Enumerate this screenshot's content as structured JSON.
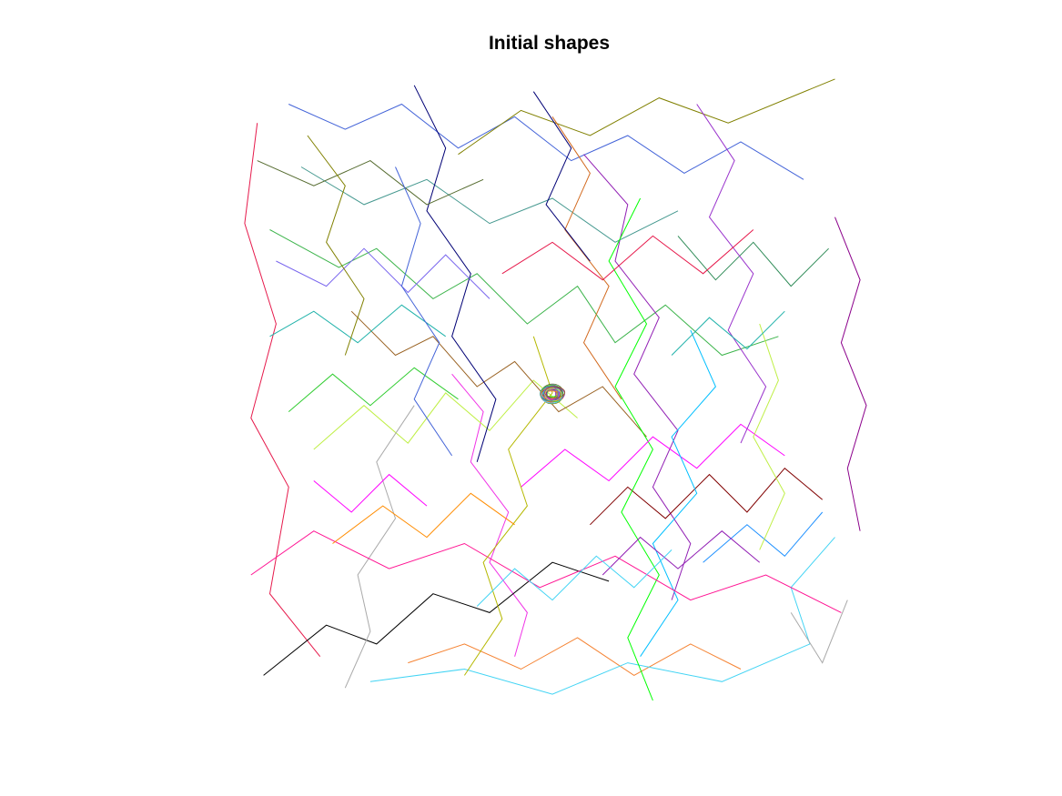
{
  "chart_data": {
    "type": "line",
    "title": "Initial shapes",
    "xlabel": "",
    "ylabel": "",
    "axes_visible": false,
    "grid": false,
    "legend": "none",
    "line_colors": [
      "#e6194b",
      "#3cb44b",
      "#4363d8",
      "#f58231",
      "#911eb4",
      "#42d4f4",
      "#f032e6",
      "#bfef45",
      "#469990",
      "#9a6324",
      "#800000",
      "#808000",
      "#000075",
      "#000000",
      "#a9a9a9",
      "#00ff00",
      "#ff00ff",
      "#00bfff",
      "#ff1493",
      "#7b68ee",
      "#b5b800",
      "#20b2aa",
      "#8b008b",
      "#556b2f",
      "#d2691e",
      "#2e8b57",
      "#9932cc",
      "#ff8c00",
      "#1e90ff",
      "#32cd32"
    ],
    "series": [
      {
        "color": "#e6194b",
        "points": [
          [
            0.13,
            0.07
          ],
          [
            0.05,
            0.17
          ],
          [
            0.08,
            0.34
          ],
          [
            0.02,
            0.45
          ],
          [
            0.06,
            0.6
          ],
          [
            0.01,
            0.76
          ],
          [
            0.03,
            0.92
          ]
        ]
      },
      {
        "color": "#3cb44b",
        "points": [
          [
            0.05,
            0.75
          ],
          [
            0.16,
            0.69
          ],
          [
            0.22,
            0.72
          ],
          [
            0.31,
            0.64
          ],
          [
            0.38,
            0.68
          ],
          [
            0.46,
            0.6
          ],
          [
            0.54,
            0.66
          ],
          [
            0.6,
            0.57
          ],
          [
            0.68,
            0.63
          ],
          [
            0.77,
            0.55
          ],
          [
            0.86,
            0.58
          ]
        ]
      },
      {
        "color": "#4363d8",
        "points": [
          [
            0.08,
            0.95
          ],
          [
            0.17,
            0.91
          ],
          [
            0.26,
            0.95
          ],
          [
            0.35,
            0.88
          ],
          [
            0.44,
            0.93
          ],
          [
            0.53,
            0.86
          ],
          [
            0.62,
            0.9
          ],
          [
            0.71,
            0.84
          ],
          [
            0.8,
            0.89
          ],
          [
            0.9,
            0.83
          ]
        ]
      },
      {
        "color": "#f58231",
        "points": [
          [
            0.27,
            0.06
          ],
          [
            0.36,
            0.09
          ],
          [
            0.45,
            0.05
          ],
          [
            0.54,
            0.1
          ],
          [
            0.63,
            0.04
          ],
          [
            0.72,
            0.09
          ],
          [
            0.8,
            0.05
          ]
        ]
      },
      {
        "color": "#911eb4",
        "points": [
          [
            0.55,
            0.87
          ],
          [
            0.62,
            0.79
          ],
          [
            0.6,
            0.7
          ],
          [
            0.67,
            0.61
          ],
          [
            0.63,
            0.52
          ],
          [
            0.7,
            0.43
          ],
          [
            0.66,
            0.34
          ],
          [
            0.72,
            0.25
          ],
          [
            0.69,
            0.16
          ]
        ]
      },
      {
        "color": "#42d4f4",
        "points": [
          [
            0.21,
            0.03
          ],
          [
            0.36,
            0.05
          ],
          [
            0.5,
            0.01
          ],
          [
            0.62,
            0.06
          ],
          [
            0.77,
            0.03
          ],
          [
            0.91,
            0.09
          ],
          [
            0.88,
            0.18
          ],
          [
            0.95,
            0.26
          ]
        ]
      },
      {
        "color": "#f032e6",
        "points": [
          [
            0.34,
            0.52
          ],
          [
            0.39,
            0.46
          ],
          [
            0.37,
            0.38
          ],
          [
            0.43,
            0.3
          ],
          [
            0.4,
            0.22
          ],
          [
            0.46,
            0.14
          ],
          [
            0.44,
            0.07
          ]
        ]
      },
      {
        "color": "#bfef45",
        "points": [
          [
            0.12,
            0.4
          ],
          [
            0.2,
            0.47
          ],
          [
            0.27,
            0.41
          ],
          [
            0.33,
            0.49
          ],
          [
            0.4,
            0.43
          ],
          [
            0.47,
            0.51
          ],
          [
            0.54,
            0.45
          ]
        ]
      },
      {
        "color": "#469990",
        "points": [
          [
            0.1,
            0.85
          ],
          [
            0.2,
            0.79
          ],
          [
            0.3,
            0.83
          ],
          [
            0.4,
            0.76
          ],
          [
            0.5,
            0.8
          ],
          [
            0.6,
            0.73
          ],
          [
            0.7,
            0.78
          ]
        ]
      },
      {
        "color": "#9a6324",
        "points": [
          [
            0.18,
            0.62
          ],
          [
            0.25,
            0.55
          ],
          [
            0.31,
            0.58
          ],
          [
            0.38,
            0.5
          ],
          [
            0.44,
            0.54
          ],
          [
            0.51,
            0.46
          ],
          [
            0.58,
            0.5
          ],
          [
            0.65,
            0.42
          ]
        ]
      },
      {
        "color": "#800000",
        "points": [
          [
            0.56,
            0.28
          ],
          [
            0.62,
            0.34
          ],
          [
            0.68,
            0.29
          ],
          [
            0.75,
            0.36
          ],
          [
            0.81,
            0.3
          ],
          [
            0.87,
            0.37
          ],
          [
            0.93,
            0.32
          ]
        ]
      },
      {
        "color": "#808000",
        "points": [
          [
            0.95,
            0.99
          ],
          [
            0.78,
            0.92
          ],
          [
            0.67,
            0.96
          ],
          [
            0.56,
            0.9
          ],
          [
            0.45,
            0.94
          ],
          [
            0.35,
            0.87
          ]
        ]
      },
      {
        "color": "#000075",
        "points": [
          [
            0.28,
            0.98
          ],
          [
            0.33,
            0.88
          ],
          [
            0.3,
            0.78
          ],
          [
            0.37,
            0.68
          ],
          [
            0.34,
            0.58
          ],
          [
            0.41,
            0.48
          ],
          [
            0.38,
            0.38
          ]
        ]
      },
      {
        "color": "#000000",
        "points": [
          [
            0.04,
            0.04
          ],
          [
            0.14,
            0.12
          ],
          [
            0.22,
            0.09
          ],
          [
            0.31,
            0.17
          ],
          [
            0.4,
            0.14
          ],
          [
            0.5,
            0.22
          ],
          [
            0.59,
            0.19
          ]
        ]
      },
      {
        "color": "#a9a9a9",
        "points": [
          [
            0.17,
            0.02
          ],
          [
            0.21,
            0.11
          ],
          [
            0.19,
            0.2
          ],
          [
            0.25,
            0.29
          ],
          [
            0.22,
            0.38
          ],
          [
            0.28,
            0.47
          ]
        ]
      },
      {
        "color": "#00ff00",
        "points": [
          [
            0.66,
            0.0
          ],
          [
            0.62,
            0.1
          ],
          [
            0.67,
            0.2
          ],
          [
            0.61,
            0.3
          ],
          [
            0.66,
            0.4
          ],
          [
            0.6,
            0.5
          ],
          [
            0.65,
            0.6
          ],
          [
            0.59,
            0.7
          ],
          [
            0.64,
            0.8
          ]
        ]
      },
      {
        "color": "#ff00ff",
        "points": [
          [
            0.45,
            0.34
          ],
          [
            0.52,
            0.4
          ],
          [
            0.59,
            0.35
          ],
          [
            0.66,
            0.42
          ],
          [
            0.73,
            0.37
          ],
          [
            0.8,
            0.44
          ],
          [
            0.87,
            0.39
          ]
        ]
      },
      {
        "color": "#00bfff",
        "points": [
          [
            0.64,
            0.07
          ],
          [
            0.7,
            0.16
          ],
          [
            0.66,
            0.25
          ],
          [
            0.73,
            0.33
          ],
          [
            0.69,
            0.42
          ],
          [
            0.76,
            0.5
          ],
          [
            0.72,
            0.59
          ]
        ]
      },
      {
        "color": "#ff1493",
        "points": [
          [
            0.96,
            0.14
          ],
          [
            0.84,
            0.2
          ],
          [
            0.72,
            0.16
          ],
          [
            0.6,
            0.23
          ],
          [
            0.48,
            0.18
          ],
          [
            0.36,
            0.25
          ],
          [
            0.24,
            0.21
          ],
          [
            0.12,
            0.27
          ],
          [
            0.02,
            0.2
          ]
        ]
      },
      {
        "color": "#7b68ee",
        "points": [
          [
            0.06,
            0.7
          ],
          [
            0.14,
            0.66
          ],
          [
            0.2,
            0.72
          ],
          [
            0.27,
            0.65
          ],
          [
            0.33,
            0.71
          ],
          [
            0.4,
            0.64
          ]
        ]
      },
      {
        "color": "#b5b800",
        "points": [
          [
            0.36,
            0.04
          ],
          [
            0.42,
            0.13
          ],
          [
            0.39,
            0.22
          ],
          [
            0.46,
            0.31
          ],
          [
            0.43,
            0.4
          ],
          [
            0.5,
            0.49
          ],
          [
            0.47,
            0.58
          ]
        ]
      },
      {
        "color": "#20b2aa",
        "points": [
          [
            0.05,
            0.58
          ],
          [
            0.12,
            0.62
          ],
          [
            0.19,
            0.57
          ],
          [
            0.26,
            0.63
          ],
          [
            0.33,
            0.58
          ]
        ]
      },
      {
        "color": "#8b008b",
        "points": [
          [
            0.99,
            0.27
          ],
          [
            0.97,
            0.37
          ],
          [
            1.0,
            0.47
          ],
          [
            0.96,
            0.57
          ],
          [
            0.99,
            0.67
          ],
          [
            0.95,
            0.77
          ]
        ]
      },
      {
        "color": "#556b2f",
        "points": [
          [
            0.03,
            0.86
          ],
          [
            0.12,
            0.82
          ],
          [
            0.21,
            0.86
          ],
          [
            0.3,
            0.79
          ],
          [
            0.39,
            0.83
          ]
        ]
      },
      {
        "color": "#d2691e",
        "points": [
          [
            0.5,
            0.93
          ],
          [
            0.56,
            0.84
          ],
          [
            0.52,
            0.75
          ],
          [
            0.59,
            0.66
          ],
          [
            0.55,
            0.57
          ],
          [
            0.61,
            0.48
          ]
        ]
      },
      {
        "color": "#2e8b57",
        "points": [
          [
            0.7,
            0.74
          ],
          [
            0.76,
            0.67
          ],
          [
            0.82,
            0.73
          ],
          [
            0.88,
            0.66
          ],
          [
            0.94,
            0.72
          ]
        ]
      },
      {
        "color": "#9932cc",
        "points": [
          [
            0.73,
            0.95
          ],
          [
            0.79,
            0.86
          ],
          [
            0.75,
            0.77
          ],
          [
            0.82,
            0.68
          ],
          [
            0.78,
            0.59
          ],
          [
            0.84,
            0.5
          ],
          [
            0.8,
            0.41
          ]
        ]
      },
      {
        "color": "#ff8c00",
        "points": [
          [
            0.15,
            0.25
          ],
          [
            0.23,
            0.31
          ],
          [
            0.3,
            0.26
          ],
          [
            0.37,
            0.33
          ],
          [
            0.44,
            0.28
          ]
        ]
      },
      {
        "color": "#1e90ff",
        "points": [
          [
            0.74,
            0.22
          ],
          [
            0.81,
            0.28
          ],
          [
            0.87,
            0.23
          ],
          [
            0.93,
            0.3
          ]
        ]
      },
      {
        "color": "#32cd32",
        "points": [
          [
            0.08,
            0.46
          ],
          [
            0.15,
            0.52
          ],
          [
            0.21,
            0.47
          ],
          [
            0.28,
            0.53
          ],
          [
            0.35,
            0.48
          ]
        ]
      },
      {
        "color": "#e6194b",
        "points": [
          [
            0.42,
            0.68
          ],
          [
            0.5,
            0.73
          ],
          [
            0.58,
            0.67
          ],
          [
            0.66,
            0.74
          ],
          [
            0.74,
            0.68
          ],
          [
            0.82,
            0.75
          ]
        ]
      },
      {
        "color": "#4363d8",
        "points": [
          [
            0.25,
            0.85
          ],
          [
            0.29,
            0.76
          ],
          [
            0.26,
            0.66
          ],
          [
            0.32,
            0.57
          ],
          [
            0.28,
            0.48
          ],
          [
            0.34,
            0.39
          ]
        ]
      },
      {
        "color": "#911eb4",
        "points": [
          [
            0.58,
            0.2
          ],
          [
            0.64,
            0.26
          ],
          [
            0.7,
            0.21
          ],
          [
            0.77,
            0.27
          ],
          [
            0.83,
            0.22
          ]
        ]
      },
      {
        "color": "#42d4f4",
        "points": [
          [
            0.38,
            0.15
          ],
          [
            0.44,
            0.21
          ],
          [
            0.5,
            0.16
          ],
          [
            0.57,
            0.23
          ],
          [
            0.63,
            0.18
          ],
          [
            0.69,
            0.24
          ]
        ]
      },
      {
        "color": "#bfef45",
        "points": [
          [
            0.83,
            0.6
          ],
          [
            0.86,
            0.51
          ],
          [
            0.82,
            0.42
          ],
          [
            0.87,
            0.33
          ],
          [
            0.83,
            0.24
          ]
        ]
      },
      {
        "color": "#808000",
        "points": [
          [
            0.11,
            0.9
          ],
          [
            0.17,
            0.82
          ],
          [
            0.14,
            0.73
          ],
          [
            0.2,
            0.64
          ],
          [
            0.17,
            0.55
          ]
        ]
      },
      {
        "color": "#000075",
        "points": [
          [
            0.47,
            0.97
          ],
          [
            0.53,
            0.88
          ],
          [
            0.49,
            0.79
          ],
          [
            0.56,
            0.7
          ]
        ]
      },
      {
        "color": "#a9a9a9",
        "points": [
          [
            0.88,
            0.14
          ],
          [
            0.93,
            0.06
          ],
          [
            0.97,
            0.16
          ]
        ]
      },
      {
        "color": "#ff00ff",
        "points": [
          [
            0.12,
            0.35
          ],
          [
            0.18,
            0.3
          ],
          [
            0.24,
            0.36
          ],
          [
            0.3,
            0.31
          ]
        ]
      },
      {
        "color": "#20b2aa",
        "points": [
          [
            0.69,
            0.55
          ],
          [
            0.75,
            0.61
          ],
          [
            0.81,
            0.56
          ],
          [
            0.87,
            0.62
          ]
        ]
      }
    ],
    "center_cluster": {
      "x": 0.5,
      "y": 0.5,
      "note_count": 40
    }
  }
}
